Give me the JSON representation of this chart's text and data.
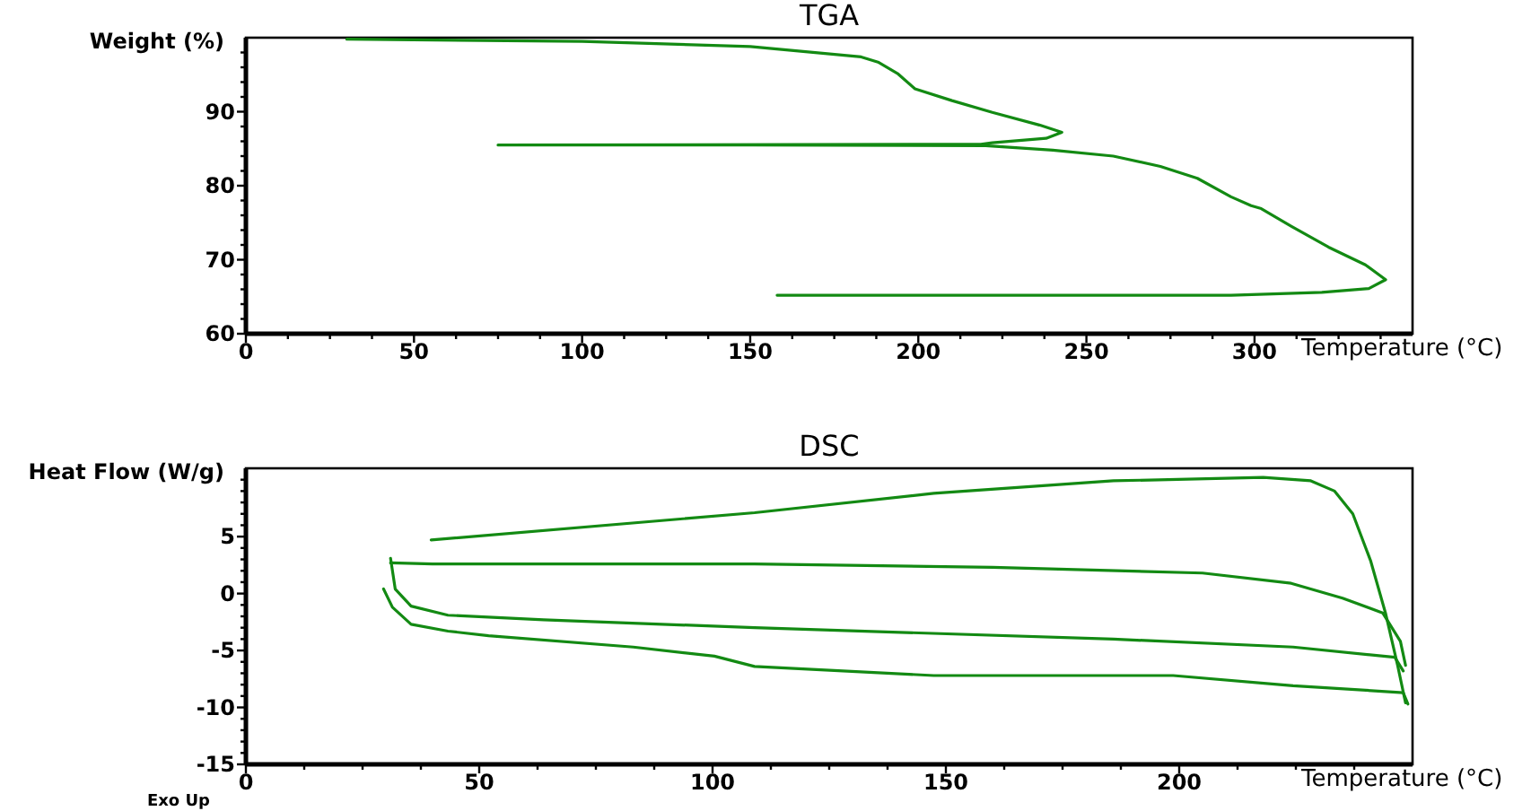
{
  "chart_data": [
    {
      "type": "line",
      "title": "TGA",
      "xlabel": "Temperature (°C)",
      "ylabel": "Weight (%)",
      "xlim": [
        0,
        347
      ],
      "ylim": [
        60,
        100
      ],
      "xticks": [
        0,
        {
          "value": 12.5,
          "label": null
        },
        {
          "value": 25,
          "label": null
        },
        {
          "value": 37.5,
          "label": null
        },
        50,
        {
          "value": 62.5,
          "label": null
        },
        {
          "value": 75,
          "label": null
        },
        {
          "value": 87.5,
          "label": null
        },
        100,
        {
          "value": 112.5,
          "label": null
        },
        {
          "value": 125,
          "label": null
        },
        {
          "value": 137.5,
          "label": null
        },
        150,
        {
          "value": 162.5,
          "label": null
        },
        {
          "value": 175,
          "label": null
        },
        {
          "value": 187.5,
          "label": null
        },
        200,
        {
          "value": 212.5,
          "label": null
        },
        {
          "value": 225,
          "label": null
        },
        {
          "value": 237.5,
          "label": null
        },
        250,
        {
          "value": 262.5,
          "label": null
        },
        {
          "value": 275,
          "label": null
        },
        {
          "value": 287.5,
          "label": null
        },
        300,
        {
          "value": 312.5,
          "label": null
        },
        {
          "value": 325,
          "label": null
        },
        {
          "value": 337.5,
          "label": null
        }
      ],
      "yticks": [
        60,
        {
          "value": 62,
          "label": null
        },
        {
          "value": 64,
          "label": null
        },
        {
          "value": 66,
          "label": null
        },
        {
          "value": 68,
          "label": null
        },
        70,
        {
          "value": 72,
          "label": null
        },
        {
          "value": 74,
          "label": null
        },
        {
          "value": 76,
          "label": null
        },
        {
          "value": 78,
          "label": null
        },
        80,
        {
          "value": 82,
          "label": null
        },
        {
          "value": 84,
          "label": null
        },
        {
          "value": 86,
          "label": null
        },
        {
          "value": 88,
          "label": null
        },
        90,
        {
          "value": 92,
          "label": null
        },
        {
          "value": 94,
          "label": null
        },
        {
          "value": 96,
          "label": null
        },
        {
          "value": 98,
          "label": null
        }
      ],
      "grid": false,
      "marker": "none",
      "line_style": "solid",
      "series": [
        {
          "color": "#138a13",
          "x": [
            30,
            100,
            150,
            183,
            188,
            194,
            199,
            210,
            222,
            236,
            242.7,
            238,
            222,
            218.6,
            75,
            150,
            220,
            240,
            258,
            272,
            283,
            293,
            299,
            302,
            311,
            322,
            333,
            339,
            334,
            320,
            293,
            158
          ],
          "values": [
            99.8,
            99.5,
            98.8,
            97.4,
            96.7,
            95.1,
            93.1,
            91.5,
            89.9,
            88.2,
            87.2,
            86.4,
            85.8,
            85.6,
            85.5,
            85.5,
            85.4,
            84.8,
            84.0,
            82.6,
            81.0,
            78.5,
            77.3,
            76.9,
            74.5,
            71.7,
            69.3,
            67.3,
            66.1,
            65.6,
            65.2,
            65.2
          ]
        }
      ]
    },
    {
      "type": "line",
      "title": "DSC",
      "xlabel": "Temperature (°C)",
      "ylabel": "Heat Flow (W/g)",
      "annotations": [
        "Exo Up"
      ],
      "xlim": [
        0,
        250
      ],
      "ylim": [
        -15,
        11
      ],
      "xticks": [
        0,
        {
          "value": 12.5,
          "label": null
        },
        {
          "value": 25,
          "label": null
        },
        {
          "value": 37.5,
          "label": null
        },
        50,
        {
          "value": 62.5,
          "label": null
        },
        {
          "value": 75,
          "label": null
        },
        {
          "value": 87.5,
          "label": null
        },
        100,
        {
          "value": 112.5,
          "label": null
        },
        {
          "value": 125,
          "label": null
        },
        {
          "value": 137.5,
          "label": null
        },
        150,
        {
          "value": 162.5,
          "label": null
        },
        {
          "value": 175,
          "label": null
        },
        {
          "value": 187.5,
          "label": null
        },
        200,
        {
          "value": 212.5,
          "label": null
        },
        {
          "value": 225,
          "label": null
        },
        {
          "value": 237.5,
          "label": null
        }
      ],
      "yticks": [
        -15,
        {
          "value": -14,
          "label": null
        },
        {
          "value": -13,
          "label": null
        },
        {
          "value": -12,
          "label": null
        },
        {
          "value": -11,
          "label": null
        },
        -10,
        {
          "value": -9,
          "label": null
        },
        {
          "value": -8,
          "label": null
        },
        {
          "value": -7,
          "label": null
        },
        {
          "value": -6,
          "label": null
        },
        -5,
        {
          "value": -4,
          "label": null
        },
        {
          "value": -3,
          "label": null
        },
        {
          "value": -2,
          "label": null
        },
        {
          "value": -1,
          "label": null
        },
        0,
        {
          "value": 1,
          "label": null
        },
        {
          "value": 2,
          "label": null
        },
        {
          "value": 3,
          "label": null
        },
        {
          "value": 4,
          "label": null
        },
        5,
        {
          "value": 6,
          "label": null
        },
        {
          "value": 7,
          "label": null
        },
        {
          "value": 8,
          "label": null
        },
        {
          "value": 9,
          "label": null
        },
        {
          "value": 10,
          "label": null
        }
      ],
      "grid": false,
      "marker": "none",
      "line_style": "solid",
      "series": [
        {
          "color": "#138a13",
          "x": [
            39.7,
            109,
            147.4,
            185.9,
            218,
            228.2,
            233.3,
            237.2,
            241,
            244.2,
            246.8,
            248.5
          ],
          "values": [
            4.7,
            7.1,
            8.8,
            9.9,
            10.2,
            9.9,
            9.0,
            7.0,
            2.9,
            -1.7,
            -6.3,
            -9.6
          ]
        },
        {
          "color": "#138a13",
          "x": [
            31,
            40,
            109,
            160,
            205,
            224,
            235,
            243.6,
            247.4,
            248.5
          ],
          "values": [
            2.7,
            2.6,
            2.6,
            2.3,
            1.8,
            0.9,
            -0.4,
            -1.7,
            -4.2,
            -6.3
          ]
        },
        {
          "color": "#138a13",
          "x": [
            31,
            32,
            35.4,
            43.3,
            63.8,
            109,
            185.9,
            224.4,
            246.2,
            248
          ],
          "values": [
            3.1,
            0.4,
            -1.1,
            -1.9,
            -2.3,
            -3.0,
            -4.0,
            -4.7,
            -5.6,
            -6.8
          ]
        },
        {
          "color": "#138a13",
          "x": [
            29.5,
            31.4,
            35.4,
            43.3,
            52,
            83,
            100.4,
            109,
            147.4,
            198.7,
            224.4,
            248,
            249
          ],
          "values": [
            0.4,
            -1.2,
            -2.7,
            -3.3,
            -3.7,
            -4.7,
            -5.5,
            -6.4,
            -7.2,
            -7.2,
            -8.1,
            -8.7,
            -9.7
          ]
        }
      ]
    }
  ]
}
